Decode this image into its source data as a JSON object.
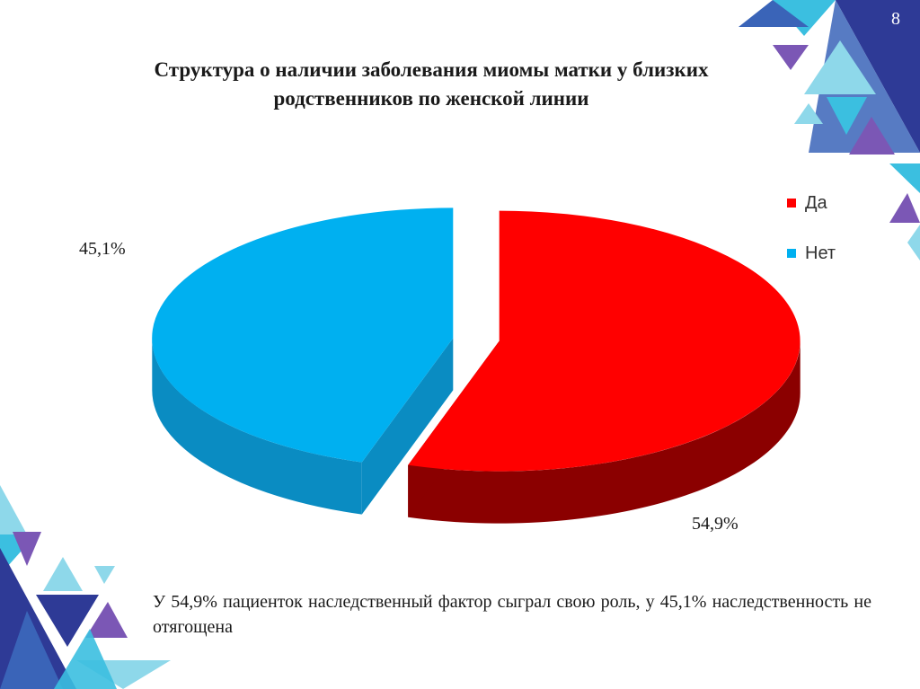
{
  "slide": {
    "number": "8",
    "caption": "У 54,9% пациенток наследственный фактор сыграл свою роль, у 45,1% наследственность не отягощена"
  },
  "chart_data": {
    "type": "pie",
    "title_lines": [
      "Структура о наличии заболевания миомы матки у близких",
      "родственников по женской линии"
    ],
    "legend_position": "right",
    "slices": [
      {
        "name": "Да",
        "value": 54.9,
        "label": "54,9%",
        "color": "#ff0000",
        "side_color": "#8b0000"
      },
      {
        "name": "Нет",
        "value": 45.1,
        "label": "45,1%",
        "color": "#00b0f0",
        "side_color": "#0a8cc2"
      }
    ]
  },
  "colors": {
    "deco_dark_blue": "#2e3a96",
    "deco_mid_blue": "#3a64b8",
    "deco_light_blue": "#8ed8ea",
    "deco_cyan": "#3bbfe0",
    "deco_purple": "#7b57b5"
  }
}
